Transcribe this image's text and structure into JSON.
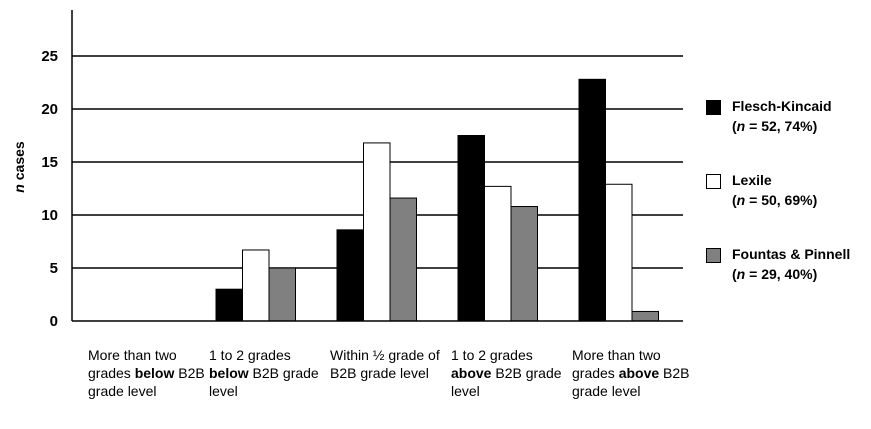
{
  "chart_data": {
    "type": "bar",
    "ylabel_italic": "n",
    "ylabel_rest": " cases",
    "ylim": [
      0,
      30
    ],
    "yticks": [
      "0",
      "5",
      "10",
      "15",
      "20",
      "25"
    ],
    "grid": true,
    "legend_position": "right",
    "categories": [
      [
        {
          "t": "More than two grades "
        },
        {
          "t": "below",
          "b": true
        },
        {
          "t": " B2B grade level"
        }
      ],
      [
        {
          "t": "1 to 2 grades "
        },
        {
          "t": "below",
          "b": true
        },
        {
          "t": " B2B grade level"
        }
      ],
      [
        {
          "t": "Within ½ grade of B2B grade level"
        }
      ],
      [
        {
          "t": "1 to 2 grades "
        },
        {
          "t": "above",
          "b": true
        },
        {
          "t": " B2B grade level"
        }
      ],
      [
        {
          "t": "More than two grades "
        },
        {
          "t": "above",
          "b": true
        },
        {
          "t": " B2B grade level"
        }
      ]
    ],
    "series": [
      {
        "name": "Flesch-Kincaid",
        "stat_n": "n",
        "stat_rest": " = 52, 74%",
        "color": "#000000",
        "values": [
          0,
          3,
          8.6,
          17.5,
          22.8
        ]
      },
      {
        "name": "Lexile",
        "stat_n": "n",
        "stat_rest": " = 50, 69%",
        "color": "#ffffff",
        "values": [
          0,
          6.7,
          16.8,
          12.7,
          12.9
        ]
      },
      {
        "name": "Fountas & Pinnell",
        "stat_n": "n",
        "stat_rest": " = 29, 40%",
        "color": "#808080",
        "values": [
          0,
          5,
          11.6,
          10.8,
          0.9
        ]
      }
    ]
  }
}
